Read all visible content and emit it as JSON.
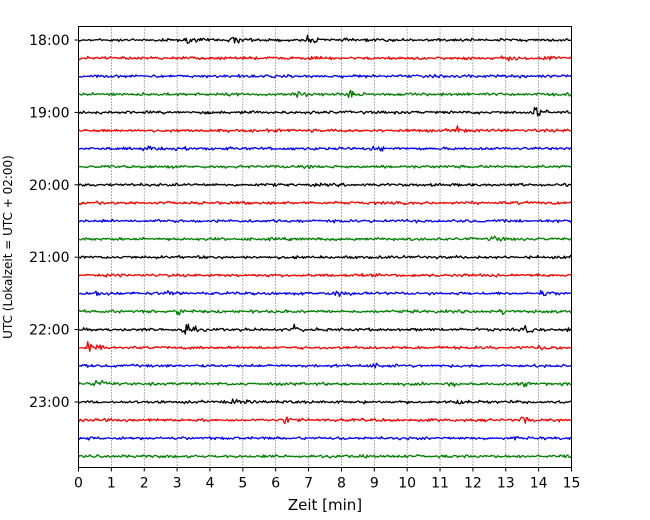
{
  "chart_data": {
    "type": "line",
    "title": "",
    "xlabel": "Zeit  [min]",
    "ylabel": "UTC (Lokalzeit = UTC + 02:00)",
    "xlim": [
      0,
      15
    ],
    "x_ticks": [
      0,
      1,
      2,
      3,
      4,
      5,
      6,
      7,
      8,
      9,
      10,
      11,
      12,
      13,
      14,
      15
    ],
    "x_grid": true,
    "trace_interval_min": 15,
    "trace_color_cycle": [
      "#000000",
      "#ff0000",
      "#0000ff",
      "#008000"
    ],
    "y_tick_labels": [
      "18:00",
      "19:00",
      "20:00",
      "21:00",
      "22:00",
      "23:00"
    ],
    "y_tick_traces": [
      0,
      4,
      8,
      12,
      16,
      20
    ],
    "series": [
      {
        "start": "18:00",
        "color": "#000000"
      },
      {
        "start": "18:15",
        "color": "#ff0000"
      },
      {
        "start": "18:30",
        "color": "#0000ff"
      },
      {
        "start": "18:45",
        "color": "#008000"
      },
      {
        "start": "19:00",
        "color": "#000000"
      },
      {
        "start": "19:15",
        "color": "#ff0000"
      },
      {
        "start": "19:30",
        "color": "#0000ff"
      },
      {
        "start": "19:45",
        "color": "#008000"
      },
      {
        "start": "20:00",
        "color": "#000000"
      },
      {
        "start": "20:15",
        "color": "#ff0000"
      },
      {
        "start": "20:30",
        "color": "#0000ff"
      },
      {
        "start": "20:45",
        "color": "#008000"
      },
      {
        "start": "21:00",
        "color": "#000000"
      },
      {
        "start": "21:15",
        "color": "#ff0000"
      },
      {
        "start": "21:30",
        "color": "#0000ff"
      },
      {
        "start": "21:45",
        "color": "#008000"
      },
      {
        "start": "22:00",
        "color": "#000000"
      },
      {
        "start": "22:15",
        "color": "#ff0000"
      },
      {
        "start": "22:30",
        "color": "#0000ff"
      },
      {
        "start": "22:45",
        "color": "#008000"
      },
      {
        "start": "23:00",
        "color": "#000000"
      },
      {
        "start": "23:15",
        "color": "#ff0000"
      },
      {
        "start": "23:30",
        "color": "#0000ff"
      },
      {
        "start": "23:45",
        "color": "#008000"
      }
    ],
    "events": [
      {
        "trace": 0,
        "x": 4.7,
        "amp": 1.8
      },
      {
        "trace": 0,
        "x": 3.3,
        "amp": 1.0
      },
      {
        "trace": 0,
        "x": 7.0,
        "amp": 1.0
      },
      {
        "trace": 1,
        "x": 14.2,
        "amp": 1.0
      },
      {
        "trace": 1,
        "x": 12.9,
        "amp": 0.8
      },
      {
        "trace": 3,
        "x": 6.7,
        "amp": 1.6
      },
      {
        "trace": 3,
        "x": 8.2,
        "amp": 1.0
      },
      {
        "trace": 4,
        "x": 13.8,
        "amp": 2.8
      },
      {
        "trace": 5,
        "x": 11.5,
        "amp": 1.2
      },
      {
        "trace": 6,
        "x": 2.0,
        "amp": 1.0
      },
      {
        "trace": 6,
        "x": 3.0,
        "amp": 0.9
      },
      {
        "trace": 6,
        "x": 9.0,
        "amp": 1.0
      },
      {
        "trace": 11,
        "x": 12.6,
        "amp": 0.8
      },
      {
        "trace": 14,
        "x": 0.5,
        "amp": 1.0
      },
      {
        "trace": 14,
        "x": 7.8,
        "amp": 1.2
      },
      {
        "trace": 14,
        "x": 2.7,
        "amp": 0.9
      },
      {
        "trace": 14,
        "x": 14.1,
        "amp": 0.9
      },
      {
        "trace": 15,
        "x": 3.0,
        "amp": 1.3
      },
      {
        "trace": 15,
        "x": 12.8,
        "amp": 0.9
      },
      {
        "trace": 16,
        "x": 3.2,
        "amp": 2.6
      },
      {
        "trace": 16,
        "x": 6.6,
        "amp": 1.4
      },
      {
        "trace": 16,
        "x": 13.6,
        "amp": 1.0
      },
      {
        "trace": 16,
        "x": 14.9,
        "amp": 1.3
      },
      {
        "trace": 17,
        "x": 0.3,
        "amp": 1.8
      },
      {
        "trace": 17,
        "x": 14.0,
        "amp": 1.2
      },
      {
        "trace": 18,
        "x": 9.0,
        "amp": 0.9
      },
      {
        "trace": 19,
        "x": 0.5,
        "amp": 1.4
      },
      {
        "trace": 19,
        "x": 11.2,
        "amp": 0.9
      },
      {
        "trace": 19,
        "x": 13.4,
        "amp": 1.0
      },
      {
        "trace": 20,
        "x": 4.7,
        "amp": 1.0
      },
      {
        "trace": 20,
        "x": 11.5,
        "amp": 0.8
      },
      {
        "trace": 21,
        "x": 6.3,
        "amp": 1.2
      },
      {
        "trace": 21,
        "x": 13.5,
        "amp": 1.0
      },
      {
        "trace": 23,
        "x": 14.9,
        "amp": 1.0
      }
    ]
  }
}
